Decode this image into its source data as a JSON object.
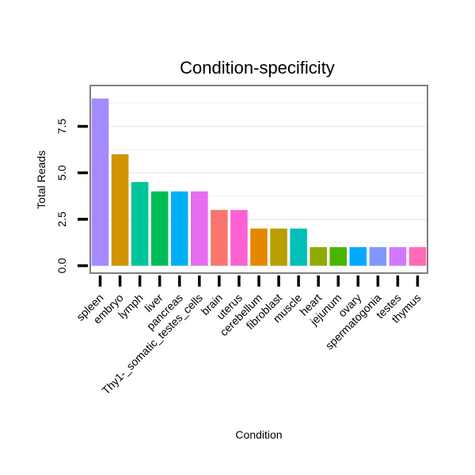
{
  "chart_data": {
    "type": "bar",
    "title": "Condition-specificity",
    "xlabel": "Condition",
    "ylabel": "Total Reads",
    "ylim": [
      -0.4,
      9.7
    ],
    "yticks": [
      0.0,
      2.5,
      5.0,
      7.5
    ],
    "ytick_labels": [
      "0.0",
      "2.5",
      "5.0",
      "7.5"
    ],
    "grid": true,
    "legend": "none",
    "categories": [
      "spleen",
      "embryo",
      "lymph",
      "liver",
      "pancreas",
      "Thy1-_somatic_testes_cells",
      "brain",
      "uterus",
      "cerebellum",
      "fibroblast",
      "muscle",
      "heart",
      "jejunum",
      "ovary",
      "spermatogonia",
      "testes",
      "thymus"
    ],
    "values": [
      9,
      6,
      4.5,
      4,
      4,
      4,
      3,
      3,
      2,
      2,
      2,
      1,
      1,
      1,
      1,
      1,
      1
    ],
    "colors": [
      "#a58afe",
      "#d09400",
      "#00c49a",
      "#00bc55",
      "#00b0f6",
      "#e56ef0",
      "#f8766d",
      "#fd61d1",
      "#e58700",
      "#b9a000",
      "#00c0b8",
      "#8eab00",
      "#49b500",
      "#00a9ff",
      "#7f96ff",
      "#d079ff",
      "#ff6bb7"
    ]
  }
}
